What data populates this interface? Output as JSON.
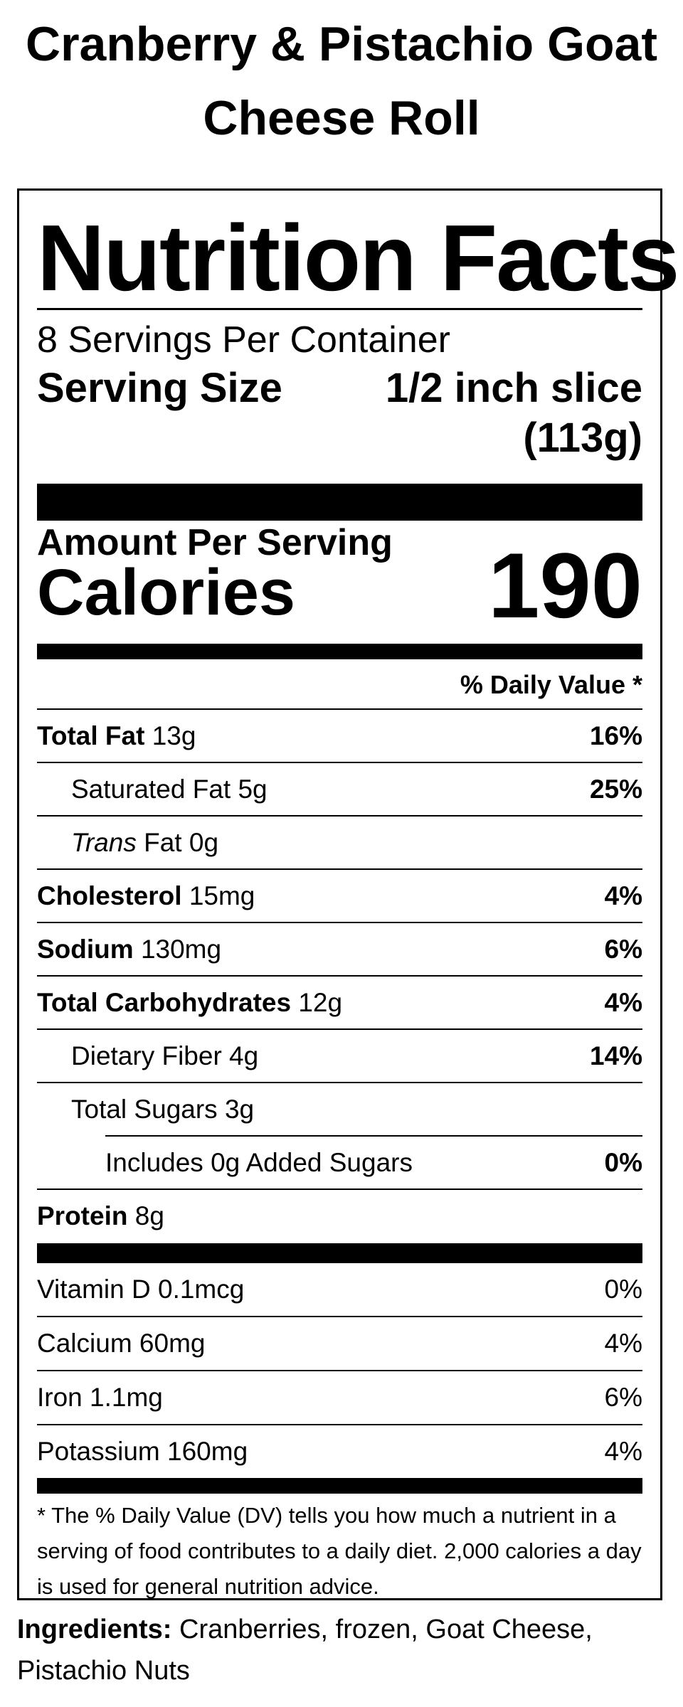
{
  "product": {
    "title_line1": "Cranberry & Pistachio Goat",
    "title_line2": "Cheese Roll"
  },
  "label": {
    "heading": "Nutrition Facts",
    "servings_per_container": "8 Servings Per Container",
    "serving_size_label": "Serving Size",
    "serving_size_value": "1/2 inch slice (113g)",
    "amount_per_serving": "Amount Per Serving",
    "calories_label": "Calories",
    "calories_value": "190",
    "daily_value_header": "% Daily Value *"
  },
  "nutrients": [
    {
      "name": "Total Fat",
      "amount": " 13g",
      "dv": "16%"
    },
    {
      "name": "Saturated Fat 5g",
      "amount": "",
      "dv": "25%"
    },
    {
      "name": "Trans",
      "amount": " Fat 0g",
      "dv": ""
    },
    {
      "name": "Cholesterol",
      "amount": " 15mg",
      "dv": "4%"
    },
    {
      "name": "Sodium",
      "amount": " 130mg",
      "dv": "6%"
    },
    {
      "name": "Total Carbohydrates",
      "amount": " 12g",
      "dv": "4%"
    },
    {
      "name": "Dietary Fiber 4g",
      "amount": "",
      "dv": "14%"
    },
    {
      "name": "Total Sugars 3g",
      "amount": "",
      "dv": ""
    },
    {
      "name": "Includes 0g Added Sugars",
      "amount": "",
      "dv": "0%"
    },
    {
      "name": "Protein",
      "amount": " 8g",
      "dv": ""
    }
  ],
  "vitamins": [
    {
      "name": "Vitamin D 0.1mcg",
      "dv": "0%"
    },
    {
      "name": "Calcium 60mg",
      "dv": "4%"
    },
    {
      "name": "Iron 1.1mg",
      "dv": "6%"
    },
    {
      "name": "Potassium 160mg",
      "dv": "4%"
    }
  ],
  "footnote": "* The % Daily Value (DV) tells you how much a nutrient in a serving of food contributes to a daily diet. 2,000 calories a day is used for general nutrition advice.",
  "ingredients": {
    "label": "Ingredients:",
    "text": " Cranberries, frozen, Goat Cheese, Pistachio Nuts"
  }
}
